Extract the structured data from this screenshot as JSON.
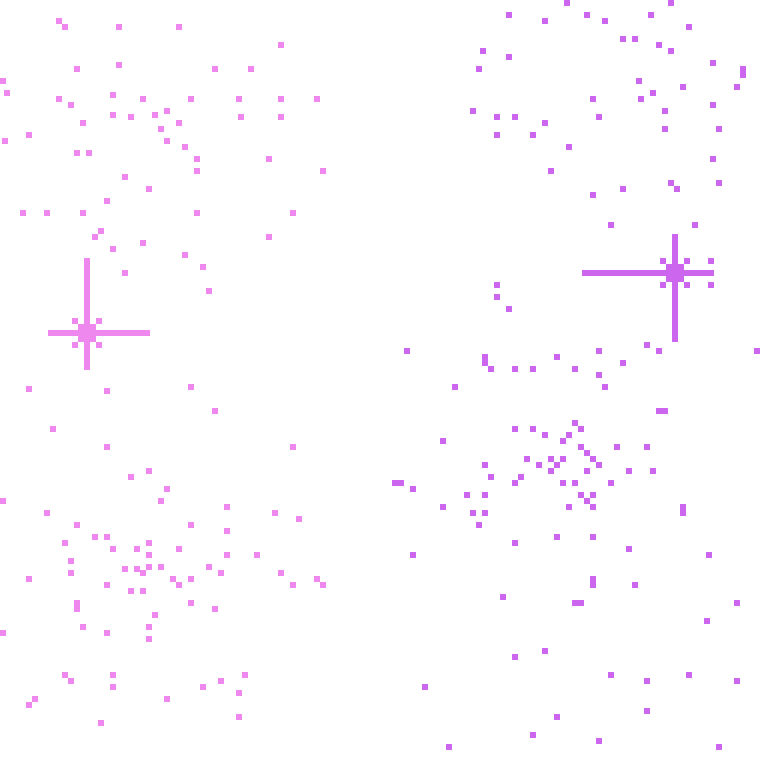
{
  "colors": {
    "background": "#ffffff",
    "pink": "#ee88ee",
    "violet": "#cc66ee"
  },
  "elements": {
    "sparkle_left": "sparkle-icon",
    "sparkle_right": "sparkle-icon"
  }
}
